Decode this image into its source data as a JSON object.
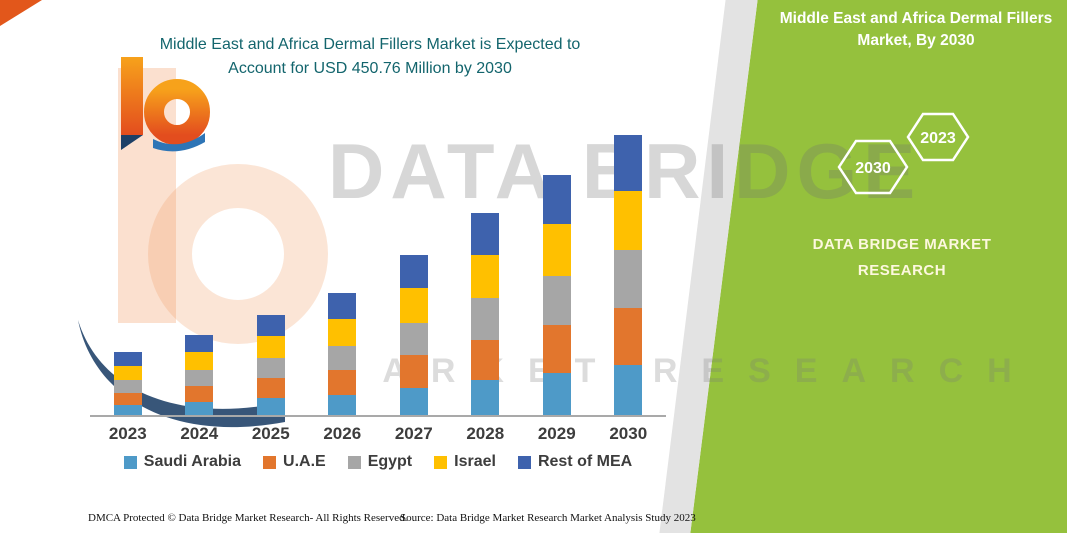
{
  "title": {
    "line1": "Middle East and Africa Dermal Fillers Market is Expected to",
    "line2": "Account for USD 450.76 Million by 2030"
  },
  "side_panel": {
    "heading_line1": "Middle East and Africa Dermal Fillers",
    "heading_line2": "Market, By 2030",
    "hex_left": "2030",
    "hex_right": "2023",
    "brand_line1": "DATA BRIDGE MARKET",
    "brand_line2": "RESEARCH",
    "bg_color": "#95c13d"
  },
  "watermark": {
    "line1": "DATA BRIDGE",
    "line2": "MARKET RESEARCH"
  },
  "footer": {
    "left": "DMCA Protected © Data Bridge Market Research-  All Rights Reserved.",
    "right": "Source: Data Bridge Market Research  Market Analysis Study 2023"
  },
  "chart_data": {
    "type": "bar",
    "stacked": true,
    "title": "Middle East and Africa Dermal Fillers Market is Expected to Account for USD 450.76 Million by 2030",
    "unit": "USD Million",
    "highlight_value": "USD 450.76 Million by 2030",
    "categories": [
      "2023",
      "2024",
      "2025",
      "2026",
      "2027",
      "2028",
      "2029",
      "2030"
    ],
    "series": [
      {
        "name": "Saudi Arabia",
        "color": "#4e9ac8",
        "values": [
          16,
          21,
          27,
          33,
          44,
          56,
          67,
          80
        ]
      },
      {
        "name": "U.A.E",
        "color": "#e2762d",
        "values": [
          20,
          26,
          32,
          39,
          52,
          65,
          78,
          92
        ]
      },
      {
        "name": "Egypt",
        "color": "#a6a6a6",
        "values": [
          20,
          26,
          33,
          40,
          53,
          67,
          79,
          93
        ]
      },
      {
        "name": "Israel",
        "color": "#ffc000",
        "values": [
          23,
          28,
          35,
          43,
          56,
          70,
          83,
          96
        ]
      },
      {
        "name": "Rest of MEA",
        "color": "#3e62ad",
        "values": [
          22,
          28,
          34,
          41,
          53,
          67,
          79,
          89.76
        ]
      }
    ],
    "totals_estimated": [
      101,
      129,
      161,
      196,
      258,
      325,
      386,
      450.76
    ],
    "ylim": [
      0,
      460
    ],
    "legend_position": "bottom",
    "grid": false
  }
}
